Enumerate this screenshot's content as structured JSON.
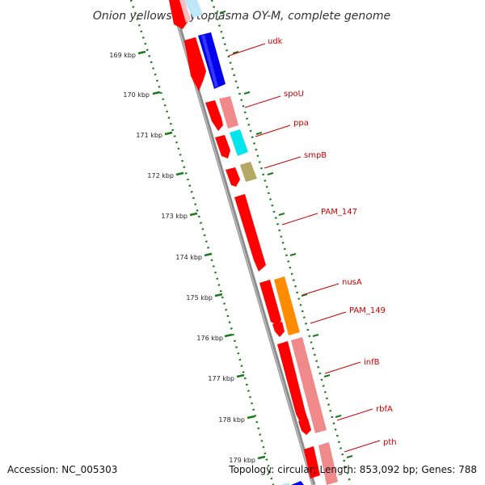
{
  "title": "Onion yellows phytoplasma OY-M, complete genome",
  "footer": {
    "accession": "Accession: NC_005303",
    "topology": "Topology: circular; Length: 853,092 bp; Genes: 788"
  },
  "kbp_ticks": [
    "169 kbp",
    "170 kbp",
    "171 kbp",
    "172 kbp",
    "173 kbp",
    "174 kbp",
    "175 kbp",
    "176 kbp",
    "177 kbp",
    "178 kbp",
    "179 kbp"
  ],
  "gene_labels": [
    "udk",
    "spoU",
    "ppa",
    "smpB",
    "PAM_147",
    "nusA",
    "PAM_149",
    "infB",
    "rbfA",
    "pth"
  ],
  "colors": {
    "cds": "#ff0000",
    "blue": "#0000ee",
    "light_red": "#f08a8a",
    "cyan": "#00e5ee",
    "olive": "#b4a864",
    "orange": "#ff8c00",
    "light_blue": "#bfe6fa",
    "backbone": "#8a8a8a",
    "ruler": "#1a7a1a",
    "label": "#cc0000"
  }
}
